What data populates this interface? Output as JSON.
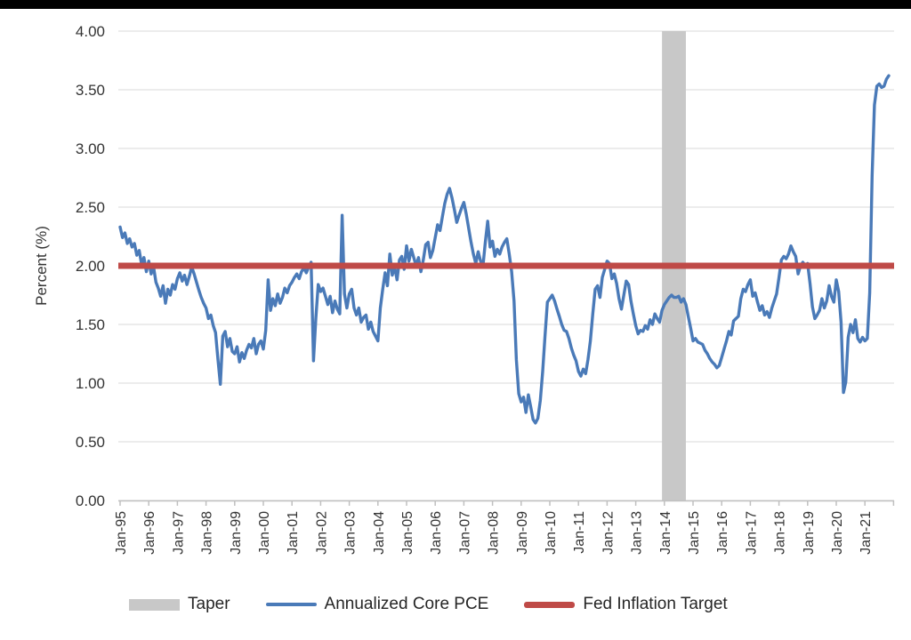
{
  "page": {
    "background": "#ffffff",
    "top_bar_color": "#000000"
  },
  "chart_data": {
    "type": "line",
    "title": "",
    "xlabel": "",
    "ylabel": "Percent (%)",
    "ylim": [
      0.0,
      4.0
    ],
    "ytick_step": 0.5,
    "ytick_labels": [
      "0.00",
      "0.50",
      "1.00",
      "1.50",
      "2.00",
      "2.50",
      "3.00",
      "3.50",
      "4.00"
    ],
    "xtick_labels": [
      "Jan-95",
      "Jan-96",
      "Jan-97",
      "Jan-98",
      "Jan-99",
      "Jan-00",
      "Jan-01",
      "Jan-02",
      "Jan-03",
      "Jan-04",
      "Jan-05",
      "Jan-06",
      "Jan-07",
      "Jan-08",
      "Jan-09",
      "Jan-10",
      "Jan-11",
      "Jan-12",
      "Jan-13",
      "Jan-14",
      "Jan-15",
      "Jan-16",
      "Jan-17",
      "Jan-18",
      "Jan-19",
      "Jan-20",
      "Jan-21"
    ],
    "x_start": "1995-01",
    "x_frequency": "monthly",
    "grid": true,
    "gridline_color": "#d9d9d9",
    "axis_color": "#c0c0c0",
    "axis_text_color": "#333333",
    "legend_position": "bottom",
    "band": {
      "name": "Taper",
      "from": "2013-12",
      "to": "2014-10",
      "color": "#c8c8c8"
    },
    "reference_line": {
      "name": "Fed Inflation Target",
      "value": 2.0,
      "color": "#bf4a47"
    },
    "series": [
      {
        "name": "Annualized Core PCE",
        "color": "#4a7ab8",
        "monthly_values": [
          2.33,
          2.24,
          2.28,
          2.19,
          2.23,
          2.16,
          2.19,
          2.09,
          2.13,
          2.01,
          2.07,
          1.95,
          2.04,
          1.93,
          1.99,
          1.86,
          1.81,
          1.74,
          1.83,
          1.68,
          1.8,
          1.75,
          1.84,
          1.8,
          1.89,
          1.94,
          1.87,
          1.92,
          1.84,
          1.91,
          1.99,
          1.93,
          1.86,
          1.79,
          1.73,
          1.68,
          1.64,
          1.55,
          1.58,
          1.49,
          1.43,
          1.2,
          0.99,
          1.4,
          1.44,
          1.31,
          1.38,
          1.27,
          1.25,
          1.31,
          1.18,
          1.26,
          1.21,
          1.28,
          1.33,
          1.3,
          1.38,
          1.25,
          1.33,
          1.36,
          1.29,
          1.45,
          1.88,
          1.62,
          1.72,
          1.66,
          1.76,
          1.68,
          1.73,
          1.81,
          1.77,
          1.83,
          1.86,
          1.9,
          1.93,
          1.89,
          1.95,
          1.98,
          1.94,
          1.99,
          2.03,
          1.19,
          1.55,
          1.84,
          1.78,
          1.81,
          1.74,
          1.67,
          1.74,
          1.6,
          1.7,
          1.63,
          1.59,
          2.43,
          1.76,
          1.64,
          1.76,
          1.8,
          1.64,
          1.58,
          1.64,
          1.52,
          1.56,
          1.58,
          1.46,
          1.52,
          1.44,
          1.4,
          1.36,
          1.64,
          1.8,
          1.94,
          1.83,
          2.1,
          1.92,
          1.99,
          1.88,
          2.05,
          2.08,
          1.97,
          2.17,
          2.04,
          2.14,
          2.07,
          2.0,
          2.07,
          1.95,
          2.05,
          2.18,
          2.2,
          2.07,
          2.13,
          2.24,
          2.35,
          2.3,
          2.42,
          2.53,
          2.61,
          2.66,
          2.58,
          2.48,
          2.37,
          2.43,
          2.49,
          2.54,
          2.44,
          2.32,
          2.2,
          2.1,
          2.02,
          2.12,
          2.04,
          2.0,
          2.2,
          2.38,
          2.16,
          2.21,
          2.08,
          2.14,
          2.1,
          2.16,
          2.2,
          2.23,
          2.1,
          1.95,
          1.7,
          1.2,
          0.91,
          0.84,
          0.88,
          0.75,
          0.9,
          0.8,
          0.69,
          0.66,
          0.7,
          0.85,
          1.1,
          1.4,
          1.69,
          1.72,
          1.75,
          1.7,
          1.63,
          1.57,
          1.5,
          1.45,
          1.44,
          1.38,
          1.3,
          1.24,
          1.19,
          1.1,
          1.06,
          1.12,
          1.08,
          1.2,
          1.36,
          1.59,
          1.8,
          1.83,
          1.73,
          1.9,
          1.97,
          2.04,
          2.02,
          1.89,
          1.93,
          1.85,
          1.72,
          1.63,
          1.75,
          1.87,
          1.84,
          1.7,
          1.59,
          1.49,
          1.42,
          1.45,
          1.44,
          1.49,
          1.46,
          1.54,
          1.5,
          1.59,
          1.55,
          1.52,
          1.62,
          1.67,
          1.7,
          1.73,
          1.75,
          1.73,
          1.73,
          1.74,
          1.69,
          1.72,
          1.67,
          1.57,
          1.47,
          1.36,
          1.38,
          1.35,
          1.34,
          1.33,
          1.28,
          1.25,
          1.21,
          1.18,
          1.16,
          1.13,
          1.15,
          1.22,
          1.29,
          1.36,
          1.44,
          1.41,
          1.53,
          1.55,
          1.57,
          1.72,
          1.8,
          1.78,
          1.84,
          1.88,
          1.74,
          1.77,
          1.69,
          1.62,
          1.66,
          1.58,
          1.61,
          1.56,
          1.64,
          1.7,
          1.76,
          1.9,
          2.05,
          2.08,
          2.06,
          2.1,
          2.17,
          2.12,
          2.08,
          1.93,
          2.0,
          2.03,
          2.0,
          2.02,
          1.85,
          1.65,
          1.55,
          1.58,
          1.62,
          1.72,
          1.64,
          1.7,
          1.83,
          1.74,
          1.69,
          1.88,
          1.78,
          1.52,
          0.92,
          1.01,
          1.39,
          1.5,
          1.43,
          1.54,
          1.38,
          1.35,
          1.39,
          1.36,
          1.38,
          1.77,
          2.77,
          3.37,
          3.53,
          3.55,
          3.52,
          3.53,
          3.59,
          3.62
        ]
      }
    ],
    "legend": [
      {
        "label": "Taper",
        "swatch": "band"
      },
      {
        "label": "Annualized Core PCE",
        "swatch": "line"
      },
      {
        "label": "Fed Inflation Target",
        "swatch": "refline"
      }
    ]
  }
}
